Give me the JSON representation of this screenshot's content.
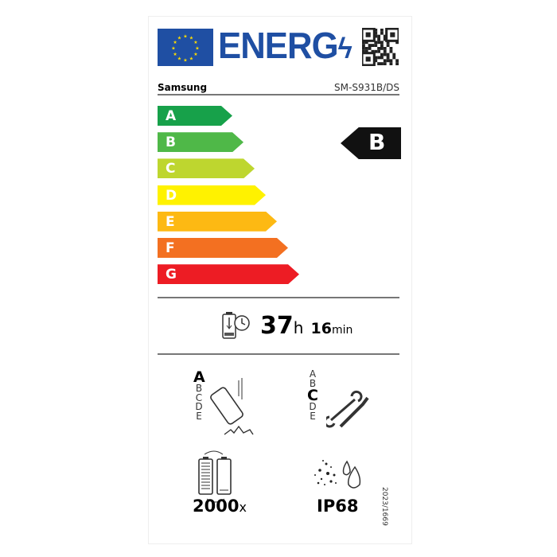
{
  "header": {
    "logo_text": "ENERG",
    "brand": "Samsung",
    "model": "SM-S931B/DS"
  },
  "scale": {
    "classes": [
      {
        "label": "A",
        "color": "#17a14a"
      },
      {
        "label": "B",
        "color": "#4fb848"
      },
      {
        "label": "C",
        "color": "#bed62f"
      },
      {
        "label": "D",
        "color": "#fff200"
      },
      {
        "label": "E",
        "color": "#fdb913"
      },
      {
        "label": "F",
        "color": "#f37021"
      },
      {
        "label": "G",
        "color": "#ed1c24"
      }
    ],
    "selected": "B"
  },
  "battery_endurance": {
    "hours": "37",
    "hours_unit": "h",
    "minutes": "16",
    "minutes_unit": "min"
  },
  "drop_resistance": {
    "classes": [
      "A",
      "B",
      "C",
      "D",
      "E"
    ],
    "selected": "A"
  },
  "repairability": {
    "classes": [
      "A",
      "B",
      "C",
      "D",
      "E"
    ],
    "selected": "C"
  },
  "battery_cycles": {
    "value": "2000",
    "unit": "x"
  },
  "ingress": {
    "value": "IP68"
  },
  "regulation": "2023/1669"
}
